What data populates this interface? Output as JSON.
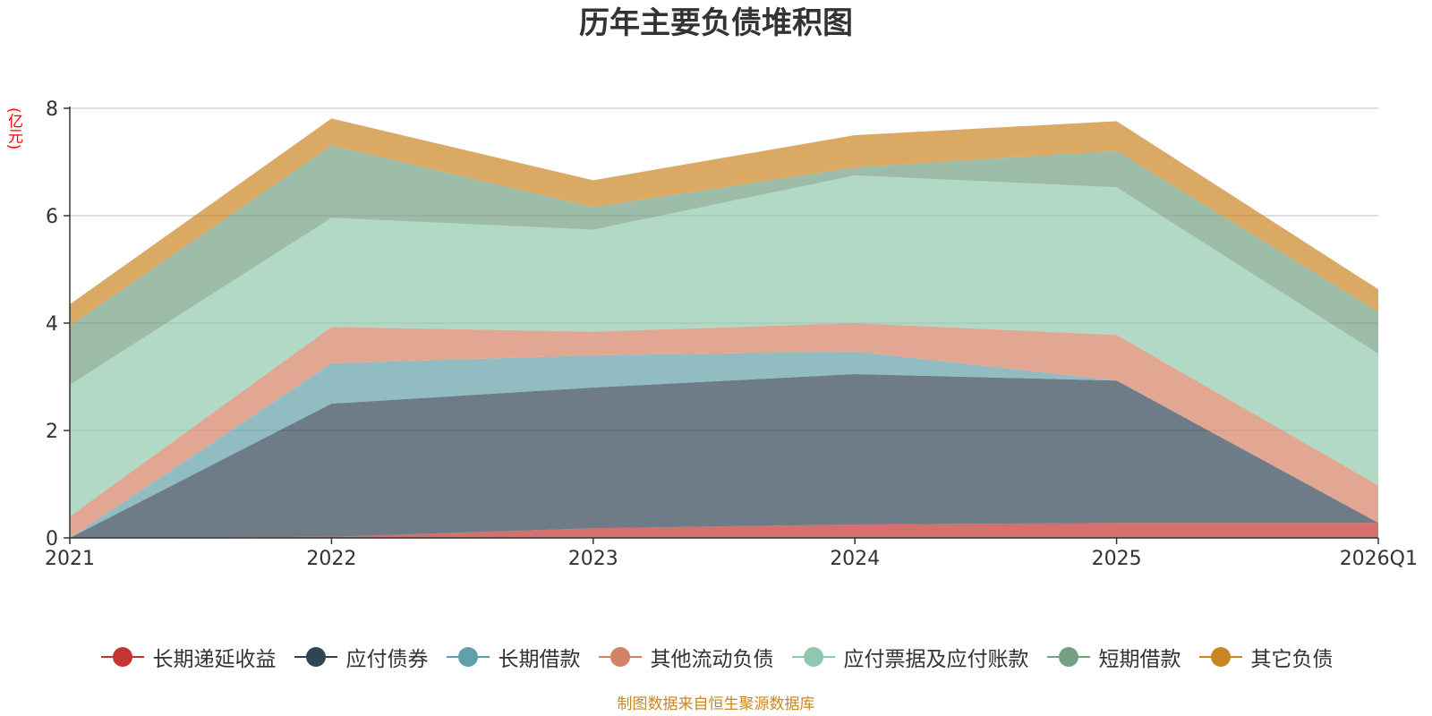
{
  "chart_data": {
    "type": "area",
    "stacked": true,
    "title": "历年主要负债堆积图",
    "ylabel": "(亿元)",
    "xlabel": "",
    "categories": [
      "2021",
      "2022",
      "2023",
      "2024",
      "2025",
      "2026Q1"
    ],
    "ylim": [
      0,
      8
    ],
    "yticks": [
      0,
      2,
      4,
      6,
      8
    ],
    "grid": true,
    "legend_position": "bottom",
    "series": [
      {
        "name": "长期递延收益",
        "color": "#c23531",
        "values": [
          0.0,
          0.02,
          0.18,
          0.25,
          0.28,
          0.28
        ]
      },
      {
        "name": "应付债券",
        "color": "#2f4554",
        "values": [
          0.0,
          2.48,
          2.62,
          2.8,
          2.65,
          0.0
        ]
      },
      {
        "name": "长期借款",
        "color": "#61a0a8",
        "values": [
          0.0,
          0.75,
          0.6,
          0.42,
          0.0,
          0.0
        ]
      },
      {
        "name": "其他流动负债",
        "color": "#d48265",
        "values": [
          0.4,
          0.68,
          0.44,
          0.53,
          0.85,
          0.7
        ]
      },
      {
        "name": "应付票据及应付账款",
        "color": "#91c7ae",
        "values": [
          2.45,
          2.03,
          1.9,
          2.75,
          2.75,
          2.45
        ]
      },
      {
        "name": "短期借款",
        "color": "#749f83",
        "values": [
          1.1,
          1.35,
          0.42,
          0.15,
          0.68,
          0.78
        ]
      },
      {
        "name": "其它负债",
        "color": "#ca8622",
        "values": [
          0.4,
          0.5,
          0.5,
          0.6,
          0.55,
          0.42
        ]
      }
    ]
  },
  "colors": {
    "title": "#333333",
    "unit": "#ff0000",
    "source": "#ca8622",
    "grid": "#cccccc",
    "axis": "#333333"
  },
  "source_note": "制图数据来自恒生聚源数据库"
}
